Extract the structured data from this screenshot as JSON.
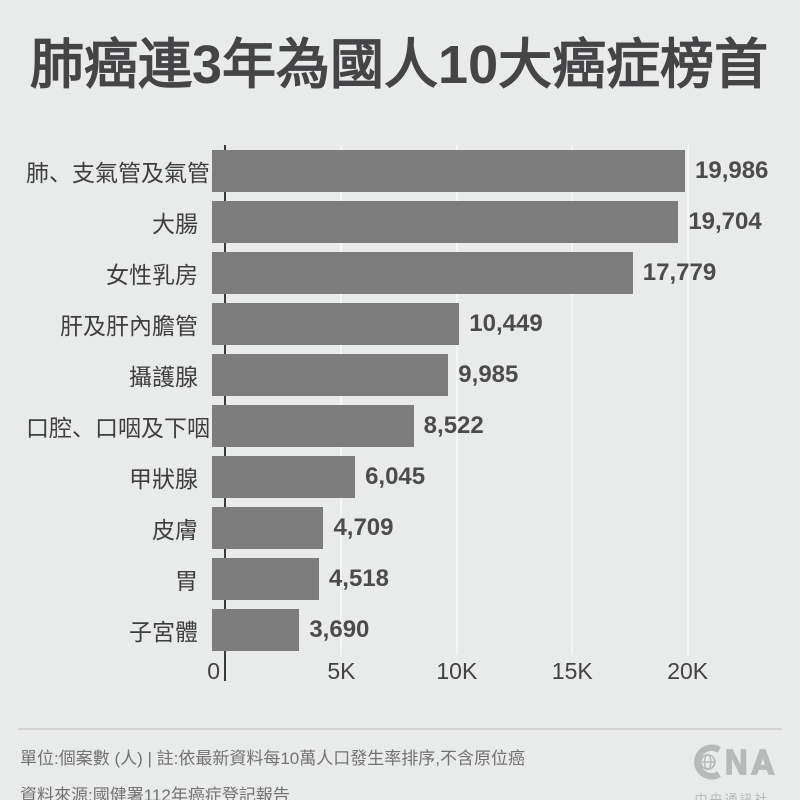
{
  "header": {
    "title": "肺癌連3年為國人10大癌症榜首"
  },
  "chart_data": {
    "type": "bar",
    "orientation": "horizontal",
    "title": "肺癌連3年為國人10大癌症榜首",
    "categories": [
      "肺、支氣管及氣管",
      "大腸",
      "女性乳房",
      "肝及肝內膽管",
      "攝護腺",
      "口腔、口咽及下咽",
      "甲狀腺",
      "皮膚",
      "胃",
      "子宮體"
    ],
    "values": [
      19986,
      19704,
      17779,
      10449,
      9985,
      8522,
      6045,
      4709,
      4518,
      3690
    ],
    "value_labels": [
      "19,986",
      "19,704",
      "17,779",
      "10,449",
      "9,985",
      "8,522",
      "6,045",
      "4,709",
      "4,518",
      "3,690"
    ],
    "x_ticks": [
      {
        "label": "0",
        "value": 0
      },
      {
        "label": "5K",
        "value": 5000
      },
      {
        "label": "10K",
        "value": 10000
      },
      {
        "label": "15K",
        "value": 15000
      },
      {
        "label": "20K",
        "value": 20000
      }
    ],
    "xlim": [
      0,
      24000
    ],
    "xlabel": "",
    "ylabel": "",
    "grid": true,
    "legend": false,
    "bar_color": "#7d7d7d"
  },
  "footer": {
    "note_line": "單位:個案數 (人) | 註:依最新資料每10萬人口發生率排序,不含原位癌",
    "source_line": "資料來源:國健署112年癌症登記報告",
    "logo_name": "CNA",
    "logo_subtext": "中央通訊社"
  },
  "colors": {
    "background": "#e9eaea",
    "bar": "#7d7d7d",
    "title_text": "#454547",
    "label_text": "#3f3f40",
    "value_text": "#4c4c4d",
    "tick_text": "#424243",
    "axis_line": "#3b3b3c",
    "gridline": "#f5f6f6",
    "divider": "#d3d3d3",
    "footer_text": "#737373",
    "logo": "#b7babb"
  }
}
